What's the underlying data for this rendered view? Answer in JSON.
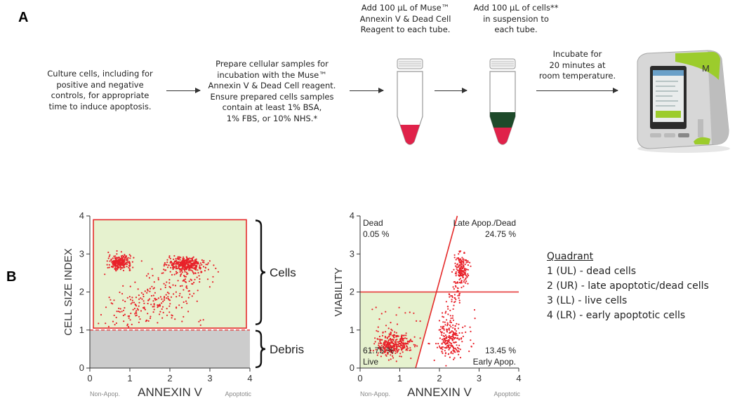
{
  "panel_a": {
    "letter": "A",
    "step1": [
      "Culture cells, including for",
      "positive and negative",
      "controls, for appropriate",
      "time to induce apoptosis."
    ],
    "step2": [
      "Prepare cellular samples for",
      "incubation with the Muse™",
      "Annexin V & Dead Cell reagent.",
      "Ensure prepared cells samples",
      "contain at least 1% BSA,",
      "1% FBS, or 10% NHS.*"
    ],
    "step3": [
      "Add 100 µL of Muse™",
      "Annexin V & Dead Cell",
      "Reagent to each tube."
    ],
    "step4": [
      "Add 100 µL of cells**",
      "in suspension to",
      "each tube."
    ],
    "step5": [
      "Incubate for",
      "20 minutes at",
      "room temperature."
    ],
    "colors": {
      "reagent": "#e0224a",
      "cells": "#1e4a2a",
      "instrument_accent": "#9ccc2c"
    }
  },
  "panel_b": {
    "letter": "B",
    "quadrant_legend": {
      "title": "Quadrant",
      "items": [
        "1 (UL) - dead cells",
        "2 (UR) - late apoptotic/dead cells",
        "3 (LL) - live cells",
        "4 (LR) - early apoptotic cells"
      ]
    }
  },
  "chart_data": [
    {
      "type": "scatter",
      "xlabel": "ANNEXIN V",
      "ylabel": "CELL SIZE INDEX",
      "xlim": [
        0,
        4
      ],
      "ylim": [
        0,
        4
      ],
      "xticks": [
        "0",
        "1",
        "2",
        "3",
        "4"
      ],
      "yticks": [
        "0",
        "1",
        "2",
        "3",
        "4"
      ],
      "x_side_labels": {
        "left": "Non-Apop.",
        "right": "Apoptotic"
      },
      "gates": {
        "cells": "Cells",
        "debris": "Debris",
        "cells_threshold": 1.05,
        "debris_threshold": 1.0
      },
      "clusters": [
        {
          "x": 0.75,
          "y": 2.78
        },
        {
          "x": 2.4,
          "y": 2.72
        },
        {
          "x": 1.4,
          "y": 1.45
        }
      ],
      "colors": {
        "points": "#e8222a",
        "cells_region": "#e6f2cf",
        "debris_region": "#cccccc",
        "gate": "#e52a2a"
      }
    },
    {
      "type": "scatter",
      "xlabel": "ANNEXIN V",
      "ylabel": "VIABILITY",
      "xlim": [
        0,
        4
      ],
      "ylim": [
        0,
        4
      ],
      "xticks": [
        "0",
        "1",
        "2",
        "3",
        "4"
      ],
      "yticks": [
        "0",
        "1",
        "2",
        "3",
        "4"
      ],
      "x_side_labels": {
        "left": "Non-Apop.",
        "right": "Apoptotic"
      },
      "quadrants": {
        "ul": {
          "label": "Dead",
          "value": "0.05 %"
        },
        "ur": {
          "label": "Late Apop./Dead",
          "value": "24.75 %"
        },
        "ll": {
          "label": "Live",
          "value": "61.75 %"
        },
        "lr": {
          "label": "Early Apop.",
          "value": "13.45 %"
        }
      },
      "gates": {
        "horizontal_y": 2.0,
        "diagonal": [
          [
            1.4,
            0.0
          ],
          [
            2.45,
            4.0
          ]
        ]
      },
      "clusters": [
        {
          "x": 0.85,
          "y": 0.62
        },
        {
          "x": 2.55,
          "y": 2.65
        },
        {
          "x": 2.3,
          "y": 0.72
        }
      ],
      "colors": {
        "points": "#e8222a",
        "live_region": "#e6f2cf",
        "gate": "#e52a2a"
      }
    }
  ]
}
